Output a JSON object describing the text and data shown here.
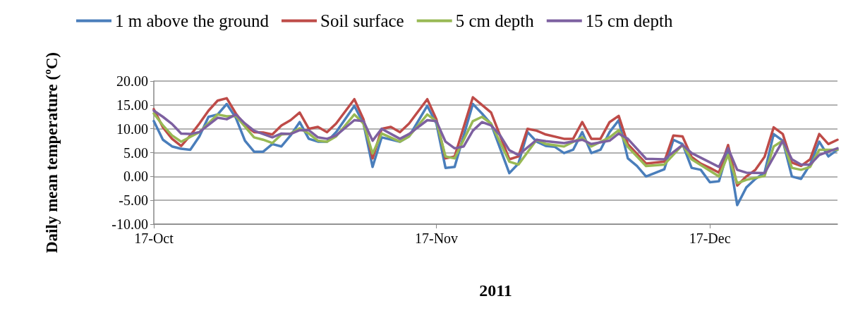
{
  "chart_data": {
    "type": "line",
    "xlabel": "2011",
    "ylabel": "Daily mean temperature (ºC)",
    "xlim": [
      "2011-10-17",
      "2011-12-31"
    ],
    "xticks": [
      {
        "value": "2011-10-17",
        "label": "17-Oct"
      },
      {
        "value": "2011-11-17",
        "label": "17-Nov"
      },
      {
        "value": "2011-12-17",
        "label": "17-Dec"
      }
    ],
    "ylim": [
      -10,
      20
    ],
    "yticks": [
      {
        "value": -10,
        "label": "-10.00"
      },
      {
        "value": -5,
        "label": "-5.00"
      },
      {
        "value": 0,
        "label": "0.00"
      },
      {
        "value": 5,
        "label": "5.00"
      },
      {
        "value": 10,
        "label": "10.00"
      },
      {
        "value": 15,
        "label": "15.00"
      },
      {
        "value": 20,
        "label": "20.00"
      }
    ],
    "grid": "y",
    "legend": "top",
    "marker": "none",
    "line_style": "solid",
    "series": [
      {
        "name": "1 m above the ground",
        "color": "#4a7ebb",
        "x": [
          "2011-10-17",
          "2011-10-18",
          "2011-10-19",
          "2011-10-20",
          "2011-10-21",
          "2011-10-22",
          "2011-10-23",
          "2011-10-24",
          "2011-10-25",
          "2011-10-26",
          "2011-10-27",
          "2011-10-28",
          "2011-10-29",
          "2011-10-30",
          "2011-10-31",
          "2011-11-01",
          "2011-11-02",
          "2011-11-03",
          "2011-11-04",
          "2011-11-05",
          "2011-11-06",
          "2011-11-08",
          "2011-11-09",
          "2011-11-10",
          "2011-11-11",
          "2011-11-13",
          "2011-11-14",
          "2011-11-16",
          "2011-11-17",
          "2011-11-18",
          "2011-11-19",
          "2011-11-21",
          "2011-11-22",
          "2011-11-23",
          "2011-11-25",
          "2011-11-26",
          "2011-11-27",
          "2011-11-28",
          "2011-11-29",
          "2011-11-30",
          "2011-12-01",
          "2011-12-02",
          "2011-12-03",
          "2011-12-04",
          "2011-12-05",
          "2011-12-06",
          "2011-12-07",
          "2011-12-08",
          "2011-12-09",
          "2011-12-10",
          "2011-12-12",
          "2011-12-13",
          "2011-12-14",
          "2011-12-15",
          "2011-12-16",
          "2011-12-17",
          "2011-12-18",
          "2011-12-19",
          "2011-12-20",
          "2011-12-21",
          "2011-12-22",
          "2011-12-23",
          "2011-12-24",
          "2011-12-25",
          "2011-12-26",
          "2011-12-27",
          "2011-12-28",
          "2011-12-29",
          "2011-12-30",
          "2011-12-31"
        ],
        "values": [
          11.6,
          7.7,
          6.3,
          5.8,
          5.6,
          8.4,
          12.5,
          13,
          15.2,
          12.3,
          7.5,
          5.2,
          5.2,
          6.8,
          6.3,
          8.6,
          11.4,
          7.9,
          7.3,
          7.3,
          9.3,
          14.8,
          11.1,
          2,
          8.2,
          7.3,
          8.4,
          14.8,
          11.1,
          1.8,
          2,
          15.2,
          13.2,
          11,
          0.7,
          2.7,
          9.3,
          7.3,
          6.4,
          6.2,
          4.9,
          5.6,
          9.3,
          4.9,
          5.6,
          9.3,
          11.8,
          3.8,
          2.2,
          0,
          1.5,
          7.7,
          6.8,
          1.8,
          1.4,
          -1.2,
          -1,
          5.5,
          -6,
          -2.3,
          -0.5,
          0.8,
          8.9,
          7.5,
          0,
          -0.5,
          2.5,
          7.3,
          4.2,
          5.6
        ]
      },
      {
        "name": "Soil surface",
        "color": "#be4b48",
        "x": [
          "2011-10-17",
          "2011-10-18",
          "2011-10-19",
          "2011-10-20",
          "2011-10-21",
          "2011-10-22",
          "2011-10-23",
          "2011-10-24",
          "2011-10-25",
          "2011-10-26",
          "2011-10-27",
          "2011-10-28",
          "2011-10-29",
          "2011-10-30",
          "2011-10-31",
          "2011-11-01",
          "2011-11-02",
          "2011-11-03",
          "2011-11-04",
          "2011-11-05",
          "2011-11-06",
          "2011-11-08",
          "2011-11-09",
          "2011-11-10",
          "2011-11-11",
          "2011-11-12",
          "2011-11-13",
          "2011-11-14",
          "2011-11-16",
          "2011-11-17",
          "2011-11-18",
          "2011-11-19",
          "2011-11-21",
          "2011-11-22",
          "2011-11-23",
          "2011-11-25",
          "2011-11-26",
          "2011-11-27",
          "2011-11-28",
          "2011-11-29",
          "2011-12-01",
          "2011-12-02",
          "2011-12-03",
          "2011-12-04",
          "2011-12-05",
          "2011-12-06",
          "2011-12-07",
          "2011-12-08",
          "2011-12-10",
          "2011-12-12",
          "2011-12-13",
          "2011-12-14",
          "2011-12-15",
          "2011-12-16",
          "2011-12-17",
          "2011-12-18",
          "2011-12-19",
          "2011-12-20",
          "2011-12-21",
          "2011-12-22",
          "2011-12-23",
          "2011-12-24",
          "2011-12-25",
          "2011-12-26",
          "2011-12-27",
          "2011-12-28",
          "2011-12-29",
          "2011-12-30",
          "2011-12-31"
        ],
        "values": [
          14.1,
          10.3,
          7.9,
          6.4,
          8.6,
          11.1,
          13.8,
          15.9,
          16.4,
          13.2,
          10.7,
          9.3,
          9.2,
          8.8,
          10.7,
          11.8,
          13.4,
          10,
          10.4,
          9.3,
          11.1,
          16.2,
          12,
          3.8,
          10,
          10.4,
          9.3,
          11.1,
          16.2,
          12,
          3.8,
          4.2,
          16.6,
          15,
          13.4,
          3.6,
          4.2,
          10,
          9.6,
          8.8,
          7.9,
          7.9,
          11.4,
          7.9,
          7.9,
          11.4,
          12.7,
          6.8,
          2.7,
          3.1,
          8.6,
          8.4,
          4.1,
          2.7,
          1.8,
          0.8,
          6.6,
          -1.9,
          0,
          1.4,
          4.1,
          10.3,
          8.9,
          2.9,
          2.2,
          3.6,
          8.9,
          6.8,
          7.7
        ]
      },
      {
        "name": "5 cm depth",
        "color": "#98b954",
        "x": [
          "2011-10-17",
          "2011-10-18",
          "2011-10-19",
          "2011-10-20",
          "2011-10-22",
          "2011-10-24",
          "2011-10-25",
          "2011-10-26",
          "2011-10-28",
          "2011-10-29",
          "2011-10-30",
          "2011-10-31",
          "2011-11-01",
          "2011-11-02",
          "2011-11-03",
          "2011-11-04",
          "2011-11-05",
          "2011-11-06",
          "2011-11-08",
          "2011-11-09",
          "2011-11-10",
          "2011-11-11",
          "2011-11-13",
          "2011-11-14",
          "2011-11-16",
          "2011-11-17",
          "2011-11-18",
          "2011-11-19",
          "2011-11-21",
          "2011-11-22",
          "2011-11-23",
          "2011-11-25",
          "2011-11-26",
          "2011-11-28",
          "2011-11-29",
          "2011-12-01",
          "2011-12-03",
          "2011-12-04",
          "2011-12-06",
          "2011-12-07",
          "2011-12-08",
          "2011-12-10",
          "2011-12-12",
          "2011-12-14",
          "2011-12-15",
          "2011-12-18",
          "2011-12-19",
          "2011-12-20",
          "2011-12-21",
          "2011-12-23",
          "2011-12-24",
          "2011-12-25",
          "2011-12-26",
          "2011-12-27",
          "2011-12-28",
          "2011-12-29",
          "2011-12-31"
        ],
        "values": [
          13.2,
          10.7,
          8.6,
          7.3,
          9.3,
          13,
          12.6,
          12.7,
          8.2,
          7.7,
          7,
          8.8,
          9,
          10.1,
          9,
          7.5,
          7.3,
          8.4,
          13,
          11.1,
          4.8,
          9,
          7.3,
          8.4,
          13,
          11.6,
          4.2,
          3.8,
          11.6,
          12.5,
          11.1,
          3.1,
          2.5,
          7.7,
          6.8,
          6.3,
          8.2,
          6.3,
          8.2,
          9.7,
          6.2,
          2.2,
          2.5,
          6.6,
          3.6,
          0,
          4.5,
          -1.4,
          -0.7,
          0.1,
          6.3,
          7.5,
          1.8,
          1.4,
          2,
          5.6,
          5.6
        ]
      },
      {
        "name": "15 cm depth",
        "color": "#7d60a0",
        "x": [
          "2011-10-17",
          "2011-10-18",
          "2011-10-19",
          "2011-10-20",
          "2011-10-21",
          "2011-10-22",
          "2011-10-24",
          "2011-10-25",
          "2011-10-26",
          "2011-10-27",
          "2011-10-28",
          "2011-10-30",
          "2011-10-31",
          "2011-11-01",
          "2011-11-02",
          "2011-11-03",
          "2011-11-04",
          "2011-11-05",
          "2011-11-06",
          "2011-11-08",
          "2011-11-09",
          "2011-11-10",
          "2011-11-11",
          "2011-11-13",
          "2011-11-14",
          "2011-11-16",
          "2011-11-17",
          "2011-11-18",
          "2011-11-19",
          "2011-11-20",
          "2011-11-21",
          "2011-11-22",
          "2011-11-23",
          "2011-11-24",
          "2011-11-25",
          "2011-11-26",
          "2011-11-28",
          "2011-11-29",
          "2011-12-01",
          "2011-12-03",
          "2011-12-04",
          "2011-12-06",
          "2011-12-07",
          "2011-12-08",
          "2011-12-10",
          "2011-12-12",
          "2011-12-14",
          "2011-12-15",
          "2011-12-18",
          "2011-12-19",
          "2011-12-20",
          "2011-12-21",
          "2011-12-23",
          "2011-12-25",
          "2011-12-26",
          "2011-12-27",
          "2011-12-28",
          "2011-12-29",
          "2011-12-30",
          "2011-12-31"
        ],
        "values": [
          13.8,
          12.5,
          11,
          9,
          8.9,
          9.3,
          12.3,
          12,
          13,
          11.1,
          9.6,
          8.2,
          9,
          8.9,
          9.7,
          9.7,
          8.2,
          7.9,
          8.6,
          11.8,
          11.6,
          7.5,
          10,
          7.9,
          8.9,
          11.8,
          11.6,
          7.3,
          5.9,
          6.3,
          9.6,
          11.4,
          10.7,
          8.6,
          5.5,
          4.5,
          7.7,
          7.4,
          7,
          7.7,
          6.8,
          7.5,
          9,
          7.9,
          3.7,
          3.6,
          6.6,
          4.9,
          2,
          5.9,
          1.4,
          0.8,
          0.7,
          7.5,
          3.6,
          2.5,
          2.5,
          4.5,
          5.2,
          5.9
        ]
      }
    ]
  }
}
